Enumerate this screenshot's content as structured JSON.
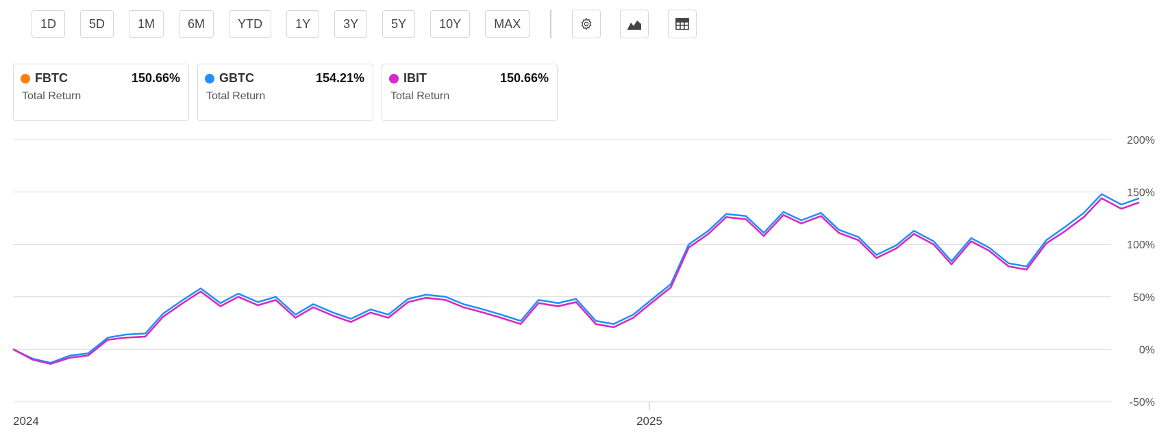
{
  "toolbar": {
    "ranges": [
      "1D",
      "5D",
      "1M",
      "6M",
      "YTD",
      "1Y",
      "3Y",
      "5Y",
      "10Y",
      "MAX"
    ],
    "icons": [
      "gear-icon",
      "area-chart-icon",
      "table-icon"
    ]
  },
  "cards": [
    {
      "ticker": "FBTC",
      "value": "150.66%",
      "metric": "Total Return",
      "color": "#ff7f0e"
    },
    {
      "ticker": "GBTC",
      "value": "154.21%",
      "metric": "Total Return",
      "color": "#1e90ff"
    },
    {
      "ticker": "IBIT",
      "value": "150.66%",
      "metric": "Total Return",
      "color": "#d62ac8"
    }
  ],
  "chart_data": {
    "type": "line",
    "title": "",
    "xlabel": "",
    "ylabel": "",
    "x_tick_labels": [
      "2024",
      "2025"
    ],
    "y_tick_labels": [
      "200%",
      "150%",
      "100%",
      "50%",
      "0%",
      "-50%"
    ],
    "ylim": [
      -50,
      200
    ],
    "grid": true,
    "legend": "none",
    "x": [
      "2024-01-11",
      "2024-01-22",
      "2024-02-01",
      "2024-02-12",
      "2024-02-22",
      "2024-03-04",
      "2024-03-14",
      "2024-03-25",
      "2024-04-04",
      "2024-04-15",
      "2024-04-25",
      "2024-05-06",
      "2024-05-16",
      "2024-05-27",
      "2024-06-06",
      "2024-06-17",
      "2024-06-27",
      "2024-07-08",
      "2024-07-18",
      "2024-07-29",
      "2024-08-08",
      "2024-08-19",
      "2024-08-29",
      "2024-09-09",
      "2024-09-19",
      "2024-09-30",
      "2024-10-10",
      "2024-10-21",
      "2024-10-31",
      "2024-11-11",
      "2024-11-21",
      "2024-12-02",
      "2024-12-12",
      "2024-12-23",
      "2025-01-02",
      "2025-01-13",
      "2025-01-23",
      "2025-02-03",
      "2025-02-13",
      "2025-02-24",
      "2025-03-06",
      "2025-03-17",
      "2025-03-27",
      "2025-04-07",
      "2025-04-17",
      "2025-04-28",
      "2025-05-08",
      "2025-05-19",
      "2025-05-29",
      "2025-06-09",
      "2025-06-19",
      "2025-06-30",
      "2025-07-10",
      "2025-07-21",
      "2025-07-31",
      "2025-08-11",
      "2025-08-21",
      "2025-09-01",
      "2025-09-11",
      "2025-09-22",
      "2025-10-02"
    ],
    "series": [
      {
        "name": "FBTC",
        "color": "#ff7f0e",
        "values": [
          0,
          -10,
          -14,
          -8,
          -6,
          9,
          11,
          12,
          31,
          44,
          55,
          41,
          50,
          42,
          47,
          30,
          40,
          32,
          26,
          35,
          30,
          45,
          49,
          47,
          40,
          35,
          30,
          24,
          44,
          41,
          45,
          24,
          21,
          30,
          44,
          59,
          97,
          110,
          126,
          124,
          108,
          128,
          120,
          127,
          111,
          104,
          87,
          96,
          110,
          100,
          81,
          103,
          94,
          79,
          76,
          101,
          112,
          126,
          144,
          134,
          140
        ]
      },
      {
        "name": "GBTC",
        "color": "#1e90ff",
        "values": [
          0,
          -9,
          -13,
          -6,
          -4,
          11,
          14,
          15,
          34,
          47,
          58,
          44,
          53,
          45,
          50,
          33,
          43,
          35,
          29,
          38,
          33,
          48,
          52,
          50,
          43,
          38,
          33,
          27,
          47,
          44,
          48,
          27,
          24,
          33,
          47,
          62,
          100,
          113,
          129,
          127,
          111,
          131,
          123,
          130,
          114,
          107,
          90,
          99,
          113,
          103,
          84,
          106,
          97,
          82,
          79,
          104,
          116,
          130,
          148,
          138,
          144
        ]
      },
      {
        "name": "IBIT",
        "color": "#d62ac8",
        "values": [
          0,
          -10,
          -14,
          -8,
          -6,
          9,
          11,
          12,
          31,
          44,
          55,
          41,
          50,
          42,
          47,
          30,
          40,
          32,
          26,
          35,
          30,
          45,
          49,
          47,
          40,
          35,
          30,
          24,
          44,
          41,
          45,
          24,
          21,
          30,
          44,
          59,
          97,
          110,
          126,
          124,
          108,
          128,
          120,
          127,
          111,
          104,
          87,
          96,
          110,
          100,
          81,
          103,
          94,
          79,
          76,
          101,
          112,
          126,
          144,
          134,
          140
        ]
      }
    ]
  }
}
